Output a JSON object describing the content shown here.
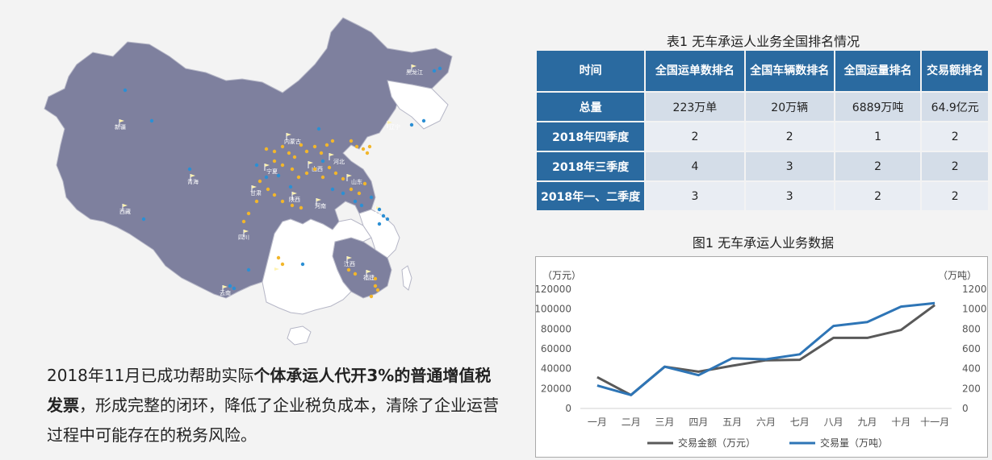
{
  "map": {
    "labels": {
      "heilongjiang": "黑龙江",
      "liaoning": "辽宁",
      "xinjiang": "新疆",
      "neimenggu": "内蒙古",
      "hebei": "河北",
      "ningxia": "宁夏",
      "shanxi": "山西",
      "shandong": "山东",
      "qinghai": "青海",
      "gansu": "甘肃",
      "shaanxi": "陕西",
      "jiangsu": "江苏",
      "henan": "河南",
      "xizang": "西藏",
      "sichuan": "四川",
      "guizhou": "贵州",
      "jiangxi": "江西",
      "fujian": "福建",
      "yunnan": "云南"
    },
    "colors": {
      "highlight": "#7e809e",
      "other": "#ffffff",
      "border": "#b5b6c6",
      "dot_yellow": "#f2b62b",
      "dot_blue": "#2b8fd4"
    }
  },
  "paragraph": {
    "part1": "2018年11月已成功帮助实际",
    "bold1": "个体承运人代开3%的普通增值税发票",
    "part2": "，形成完整的闭环，降低了企业税负成本，清除了企业运营过程中可能存在的税务风险。"
  },
  "table": {
    "title": "表1  无车承运人业务全国排名情况",
    "headers": [
      "时间",
      "全国运单数排名",
      "全国车辆数排名",
      "全国运量排名",
      "交易额排名"
    ],
    "rows": [
      {
        "label": "总量",
        "cells": [
          "223万单",
          "20万辆",
          "6889万吨",
          "64.9亿元"
        ]
      },
      {
        "label": "2018年四季度",
        "cells": [
          "2",
          "2",
          "1",
          "2"
        ]
      },
      {
        "label": "2018年三季度",
        "cells": [
          "4",
          "3",
          "2",
          "2"
        ]
      },
      {
        "label": "2018年一、二季度",
        "cells": [
          "3",
          "3",
          "2",
          "2"
        ]
      }
    ]
  },
  "chart_data": {
    "type": "line",
    "title": "图1  无车承运人业务数据",
    "left_unit": "（万元）",
    "right_unit": "（万吨）",
    "categories": [
      "一月",
      "二月",
      "三月",
      "四月",
      "五月",
      "六月",
      "七月",
      "八月",
      "九月",
      "十月",
      "十一月"
    ],
    "left_ticks": [
      "120000",
      "100000",
      "80000",
      "60000",
      "40000",
      "20000",
      "0"
    ],
    "right_ticks": [
      "1200",
      "1000",
      "800",
      "600",
      "400",
      "200",
      "0"
    ],
    "ylim_left": [
      0,
      120000
    ],
    "ylim_right": [
      0,
      1200
    ],
    "series": [
      {
        "name": "交易金额（万元）",
        "axis": "left",
        "color": "#595959",
        "values": [
          31500,
          13500,
          42000,
          37000,
          43000,
          48500,
          49000,
          71000,
          71000,
          79000,
          104000
        ]
      },
      {
        "name": "交易量（万吨）",
        "axis": "right",
        "color": "#2e75b6",
        "values": [
          230,
          135,
          420,
          335,
          505,
          495,
          545,
          830,
          870,
          1025,
          1060
        ]
      }
    ],
    "grid": false,
    "legend": "bottom"
  }
}
